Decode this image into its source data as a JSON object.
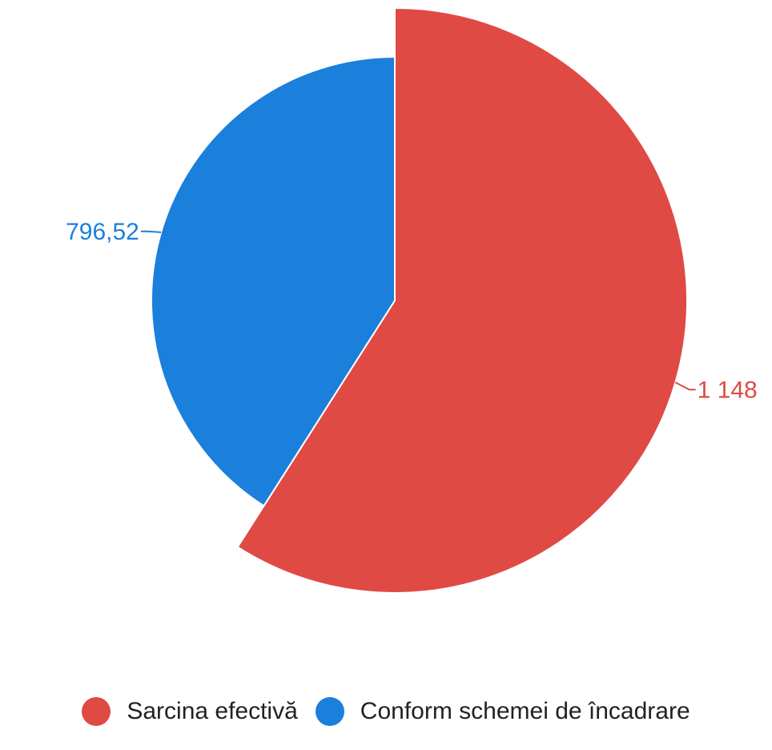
{
  "chart_data": {
    "type": "pie",
    "title": "",
    "categories": [
      "Sarcina efectivă",
      "Conform schemei de încadrare"
    ],
    "values": [
      1148,
      796.52
    ],
    "value_labels": [
      "1 148",
      "796,52"
    ],
    "colors": [
      "#e04a44",
      "#1b7fdc"
    ],
    "legend_position": "bottom",
    "variable_radius": true
  },
  "legend": {
    "items": [
      {
        "label": "Sarcina efectivă",
        "color": "#e04a44"
      },
      {
        "label": "Conform schemei de încadrare",
        "color": "#1b7fdc"
      }
    ]
  }
}
